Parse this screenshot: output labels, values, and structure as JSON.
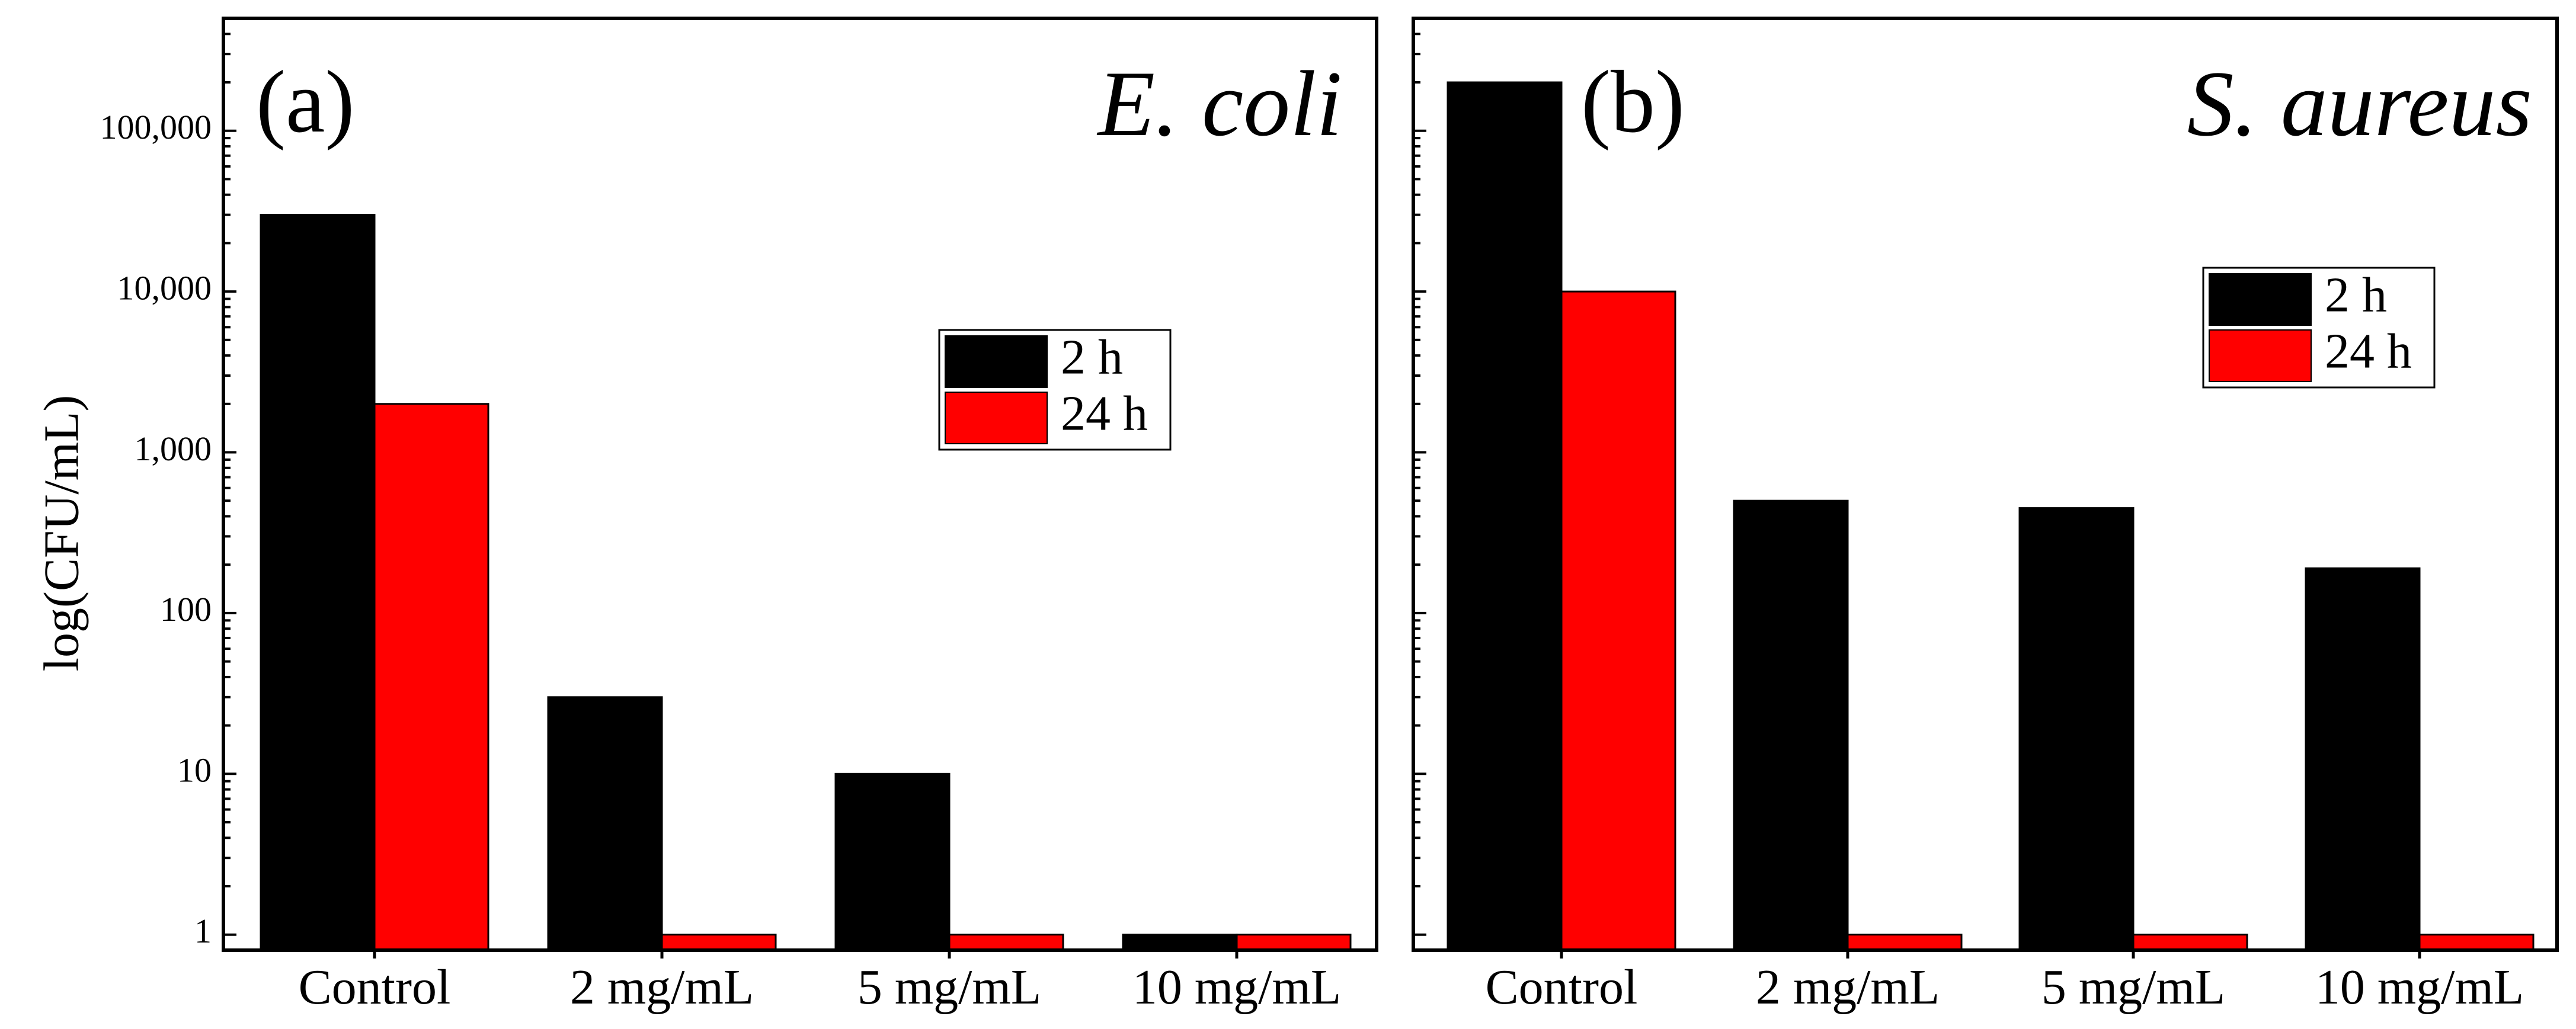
{
  "colors": {
    "series_2h": "#000000",
    "series_24h": "#ff0000",
    "axis": "#000000",
    "background": "#ffffff"
  },
  "ylabel": "log(CFU/mL)",
  "yscale": "log",
  "ylim": [
    0.8,
    500000
  ],
  "yticks": [
    {
      "value": 1,
      "label": "1"
    },
    {
      "value": 10,
      "label": "10"
    },
    {
      "value": 100,
      "label": "100"
    },
    {
      "value": 1000,
      "label": "1,000"
    },
    {
      "value": 10000,
      "label": "10,000"
    },
    {
      "value": 100000,
      "label": "100,000"
    }
  ],
  "chart_data": [
    {
      "type": "bar",
      "panel_label": "(a)",
      "title": "E. coli",
      "categories": [
        "Control",
        "2 mg/mL",
        "5 mg/mL",
        "10 mg/mL"
      ],
      "series": [
        {
          "name": "2 h",
          "values": [
            30000,
            30,
            10,
            1
          ]
        },
        {
          "name": "24 h",
          "values": [
            2000,
            1,
            1,
            1
          ]
        }
      ],
      "legend": {
        "placement": "center-right",
        "entries": [
          "2 h",
          "24 h"
        ]
      }
    },
    {
      "type": "bar",
      "panel_label": "(b)",
      "title": "S. aureus",
      "categories": [
        "Control",
        "2 mg/mL",
        "5 mg/mL",
        "10 mg/mL"
      ],
      "series": [
        {
          "name": "2 h",
          "values": [
            200000,
            500,
            450,
            190
          ]
        },
        {
          "name": "24 h",
          "values": [
            10000,
            1,
            1,
            1
          ]
        }
      ],
      "legend": {
        "placement": "upper-right",
        "entries": [
          "2 h",
          "24 h"
        ]
      }
    }
  ]
}
